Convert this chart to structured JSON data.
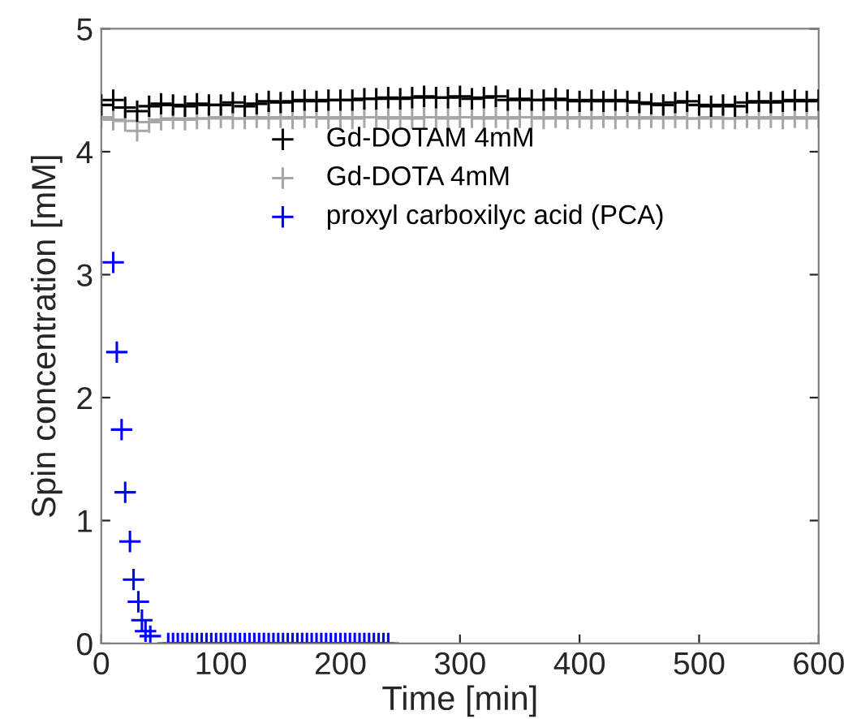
{
  "chart_data": {
    "type": "scatter",
    "xlabel": "Time [min]",
    "ylabel": "Spin concentration [mM]",
    "xlim": [
      0,
      600
    ],
    "ylim": [
      0,
      5
    ],
    "xticks": [
      0,
      100,
      200,
      300,
      400,
      500,
      600
    ],
    "yticks": [
      0,
      1,
      2,
      3,
      4,
      5
    ],
    "grid": false,
    "legend": "top",
    "marker": "cross",
    "series": [
      {
        "name": "Gd-DOTAM 4mM",
        "color": "#000000",
        "x": [
          0,
          10,
          20,
          30,
          40,
          50,
          60,
          70,
          80,
          90,
          100,
          110,
          120,
          130,
          140,
          150,
          160,
          170,
          180,
          190,
          200,
          210,
          220,
          230,
          240,
          250,
          260,
          270,
          280,
          290,
          300,
          310,
          320,
          330,
          340,
          350,
          360,
          370,
          380,
          390,
          400,
          410,
          420,
          430,
          440,
          450,
          460,
          470,
          480,
          490,
          500,
          510,
          520,
          530,
          540,
          550,
          560,
          570,
          580,
          590,
          600
        ],
        "values": [
          4.38,
          4.42,
          4.36,
          4.33,
          4.37,
          4.39,
          4.38,
          4.37,
          4.39,
          4.38,
          4.38,
          4.4,
          4.37,
          4.39,
          4.41,
          4.4,
          4.41,
          4.42,
          4.41,
          4.42,
          4.42,
          4.42,
          4.43,
          4.43,
          4.44,
          4.43,
          4.44,
          4.45,
          4.44,
          4.44,
          4.45,
          4.43,
          4.44,
          4.45,
          4.42,
          4.43,
          4.42,
          4.42,
          4.43,
          4.42,
          4.41,
          4.42,
          4.41,
          4.42,
          4.41,
          4.4,
          4.39,
          4.38,
          4.4,
          4.41,
          4.38,
          4.37,
          4.38,
          4.37,
          4.4,
          4.41,
          4.4,
          4.41,
          4.42,
          4.41,
          4.42
        ]
      },
      {
        "name": "Gd-DOTA 4mM",
        "color": "#a6a6a6",
        "x": [
          0,
          10,
          20,
          30,
          40,
          50,
          60,
          70,
          80,
          90,
          100,
          110,
          120,
          130,
          140,
          150,
          160,
          170,
          180,
          190,
          200,
          210,
          220,
          230,
          240,
          250,
          260,
          270,
          280,
          290,
          300,
          310,
          320,
          330,
          340,
          350,
          360,
          370,
          380,
          390,
          400,
          410,
          420,
          430,
          440,
          450,
          460,
          470,
          480,
          490,
          500,
          510,
          520,
          530,
          540,
          550,
          560,
          570,
          580,
          590,
          600
        ],
        "values": [
          4.28,
          4.26,
          4.25,
          4.17,
          4.24,
          4.26,
          4.27,
          4.26,
          4.27,
          4.27,
          4.28,
          4.27,
          4.27,
          4.28,
          4.27,
          4.28,
          4.27,
          4.28,
          4.28,
          4.27,
          4.28,
          4.27,
          4.28,
          4.28,
          4.27,
          4.28,
          4.27,
          4.28,
          4.28,
          4.27,
          4.28,
          4.28,
          4.27,
          4.28,
          4.27,
          4.28,
          4.28,
          4.27,
          4.28,
          4.27,
          4.28,
          4.27,
          4.28,
          4.27,
          4.28,
          4.27,
          4.28,
          4.27,
          4.28,
          4.27,
          4.27,
          4.28,
          4.27,
          4.27,
          4.28,
          4.27,
          4.28,
          4.27,
          4.28,
          4.27,
          4.28
        ]
      },
      {
        "name": "proxyl carboxilyc acid (PCA)",
        "color": "#0000ff",
        "x": [
          10,
          13,
          17,
          20,
          24,
          27,
          31,
          34,
          37,
          41,
          44,
          48,
          52,
          56,
          60,
          64,
          68,
          72,
          76,
          80,
          84,
          88,
          92,
          96,
          100,
          104,
          108,
          112,
          116,
          120,
          124,
          128,
          132,
          136,
          140,
          144,
          148,
          152,
          156,
          160,
          164,
          168,
          172,
          176,
          180,
          184,
          188,
          192,
          196,
          200,
          204,
          208,
          212,
          216,
          220,
          224,
          228,
          232,
          236,
          240
        ],
        "values": [
          3.1,
          2.37,
          1.74,
          1.23,
          0.83,
          0.52,
          0.34,
          0.19,
          0.1,
          0.06,
          null,
          null,
          null,
          0,
          0,
          0,
          0,
          0,
          0,
          0,
          0,
          0,
          0,
          0,
          0,
          0,
          0,
          0,
          0,
          0,
          0,
          0,
          0,
          0,
          0,
          0,
          0,
          0,
          0,
          0,
          0,
          0,
          0,
          0,
          0,
          0,
          0,
          0,
          0,
          0,
          0,
          0,
          0,
          0,
          0,
          0,
          0,
          0,
          0,
          0
        ]
      }
    ]
  }
}
